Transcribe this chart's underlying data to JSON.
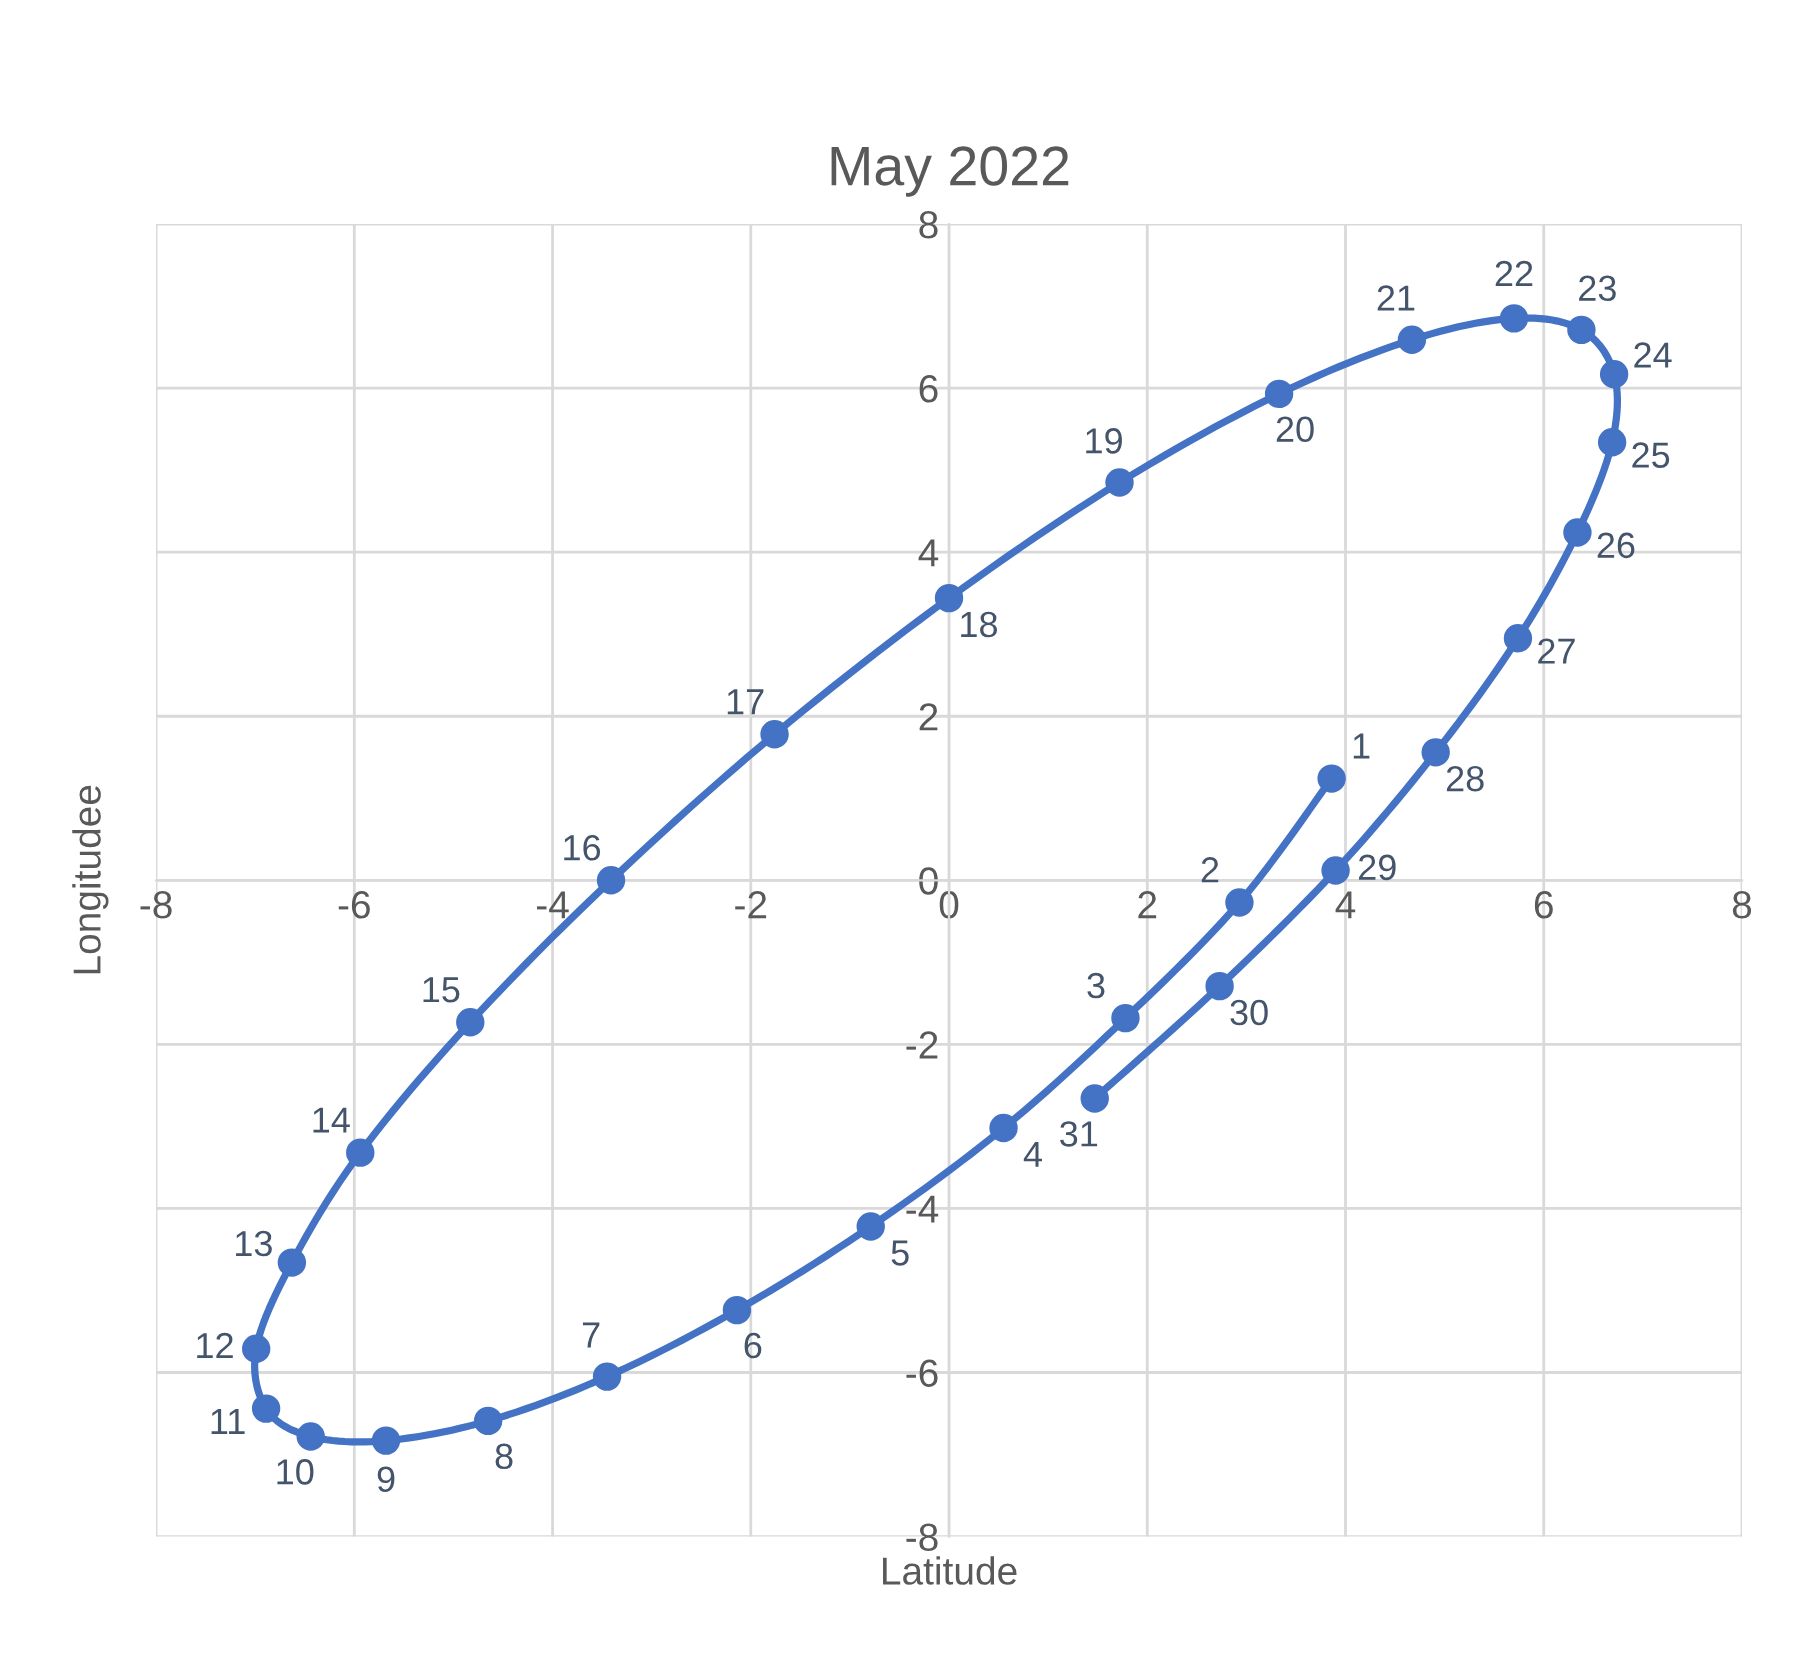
{
  "chart_data": {
    "type": "line",
    "title": "May 2022",
    "xlabel": "Latitude",
    "ylabel": "Longitudee",
    "xlim": [
      -8,
      8
    ],
    "ylim": [
      -8,
      8
    ],
    "xticks": [
      -8,
      -6,
      -4,
      -2,
      0,
      2,
      4,
      6,
      8
    ],
    "yticks": [
      -8,
      -6,
      -4,
      -2,
      0,
      2,
      4,
      6,
      8
    ],
    "grid": true,
    "marker": "circle",
    "line_style": "solid",
    "series": [
      {
        "color": "#4472c4",
        "x": [
          3.86,
          2.93,
          1.78,
          0.55,
          -0.79,
          -2.14,
          -3.45,
          -4.65,
          -5.68,
          -6.44,
          -6.89,
          -6.99,
          -6.63,
          -5.94,
          -4.83,
          -3.41,
          -1.76,
          0.0,
          1.72,
          3.33,
          4.67,
          5.7,
          6.38,
          6.71,
          6.69,
          6.34,
          5.74,
          4.91,
          3.9,
          2.73,
          1.47
        ],
        "values": [
          1.24,
          -0.27,
          -1.68,
          -3.02,
          -4.22,
          -5.24,
          -6.05,
          -6.59,
          -6.83,
          -6.78,
          -6.44,
          -5.71,
          -4.66,
          -3.32,
          -1.73,
          0.0,
          1.78,
          3.44,
          4.85,
          5.93,
          6.59,
          6.85,
          6.71,
          6.17,
          5.34,
          4.24,
          2.95,
          1.56,
          0.12,
          -1.29,
          -2.66
        ]
      }
    ],
    "annotations": [
      {
        "text": "1",
        "x": 3.86,
        "y": 1.24
      },
      {
        "text": "2",
        "x": 2.93,
        "y": -0.27
      },
      {
        "text": "3",
        "x": 1.78,
        "y": -1.68
      },
      {
        "text": "4",
        "x": 0.55,
        "y": -3.02
      },
      {
        "text": "5",
        "x": -0.79,
        "y": -4.22
      },
      {
        "text": "6",
        "x": -2.14,
        "y": -5.24
      },
      {
        "text": "7",
        "x": -3.45,
        "y": -6.05
      },
      {
        "text": "8",
        "x": -4.65,
        "y": -6.59
      },
      {
        "text": "9",
        "x": -5.68,
        "y": -6.83
      },
      {
        "text": "10",
        "x": -6.44,
        "y": -6.78
      },
      {
        "text": "11",
        "x": -6.89,
        "y": -6.44
      },
      {
        "text": "12",
        "x": -6.99,
        "y": -5.71
      },
      {
        "text": "13",
        "x": -6.63,
        "y": -4.66
      },
      {
        "text": "14",
        "x": -5.94,
        "y": -3.32
      },
      {
        "text": "15",
        "x": -4.83,
        "y": -1.73
      },
      {
        "text": "16",
        "x": -3.41,
        "y": 0.0
      },
      {
        "text": "17",
        "x": -1.76,
        "y": 1.78
      },
      {
        "text": "18",
        "x": 0.0,
        "y": 3.44
      },
      {
        "text": "19",
        "x": 1.72,
        "y": 4.85
      },
      {
        "text": "20",
        "x": 3.33,
        "y": 5.93
      },
      {
        "text": "21",
        "x": 4.67,
        "y": 6.59
      },
      {
        "text": "22",
        "x": 5.7,
        "y": 6.85
      },
      {
        "text": "23",
        "x": 6.38,
        "y": 6.71
      },
      {
        "text": "24",
        "x": 6.71,
        "y": 6.17
      },
      {
        "text": "25",
        "x": 6.69,
        "y": 5.34
      },
      {
        "text": "26",
        "x": 6.34,
        "y": 4.24
      },
      {
        "text": "27",
        "x": 5.74,
        "y": 2.95
      },
      {
        "text": "28",
        "x": 4.91,
        "y": 1.56
      },
      {
        "text": "29",
        "x": 3.9,
        "y": 0.12
      },
      {
        "text": "30",
        "x": 2.73,
        "y": -1.29
      },
      {
        "text": "31",
        "x": 1.47,
        "y": -2.66
      }
    ]
  }
}
